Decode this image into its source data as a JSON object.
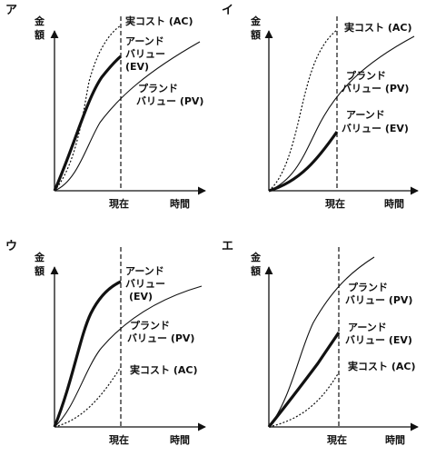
{
  "charts": [
    {
      "label": "ア",
      "y_axis": "金額",
      "x_axis": "時間",
      "now": "現在",
      "labels": {
        "ac": "実コスト (AC)",
        "ev": [
          "アーンド",
          "バリュー",
          "(EV)"
        ],
        "pv": [
          "プランド",
          "バリュー (PV)"
        ]
      }
    },
    {
      "label": "イ",
      "y_axis": "金額",
      "x_axis": "時間",
      "now": "現在",
      "labels": {
        "ac": "実コスト (AC)",
        "pv": [
          "プランド",
          "バリュー (PV)"
        ],
        "ev": [
          "アーンド",
          "バリュー (EV)"
        ]
      }
    },
    {
      "label": "ウ",
      "y_axis": "金額",
      "x_axis": "時間",
      "now": "現在",
      "labels": {
        "ev": [
          "アーンド",
          "バリュー",
          "(EV)"
        ],
        "pv": [
          "プランド",
          "バリュー (PV)"
        ],
        "ac": "実コスト (AC)"
      }
    },
    {
      "label": "エ",
      "y_axis": "金額",
      "x_axis": "時間",
      "now": "現在",
      "labels": {
        "pv": [
          "プランド",
          "バリュー (PV)"
        ],
        "ev": [
          "アーンド",
          "バリュー (EV)"
        ],
        "ac": "実コスト (AC)"
      }
    }
  ]
}
